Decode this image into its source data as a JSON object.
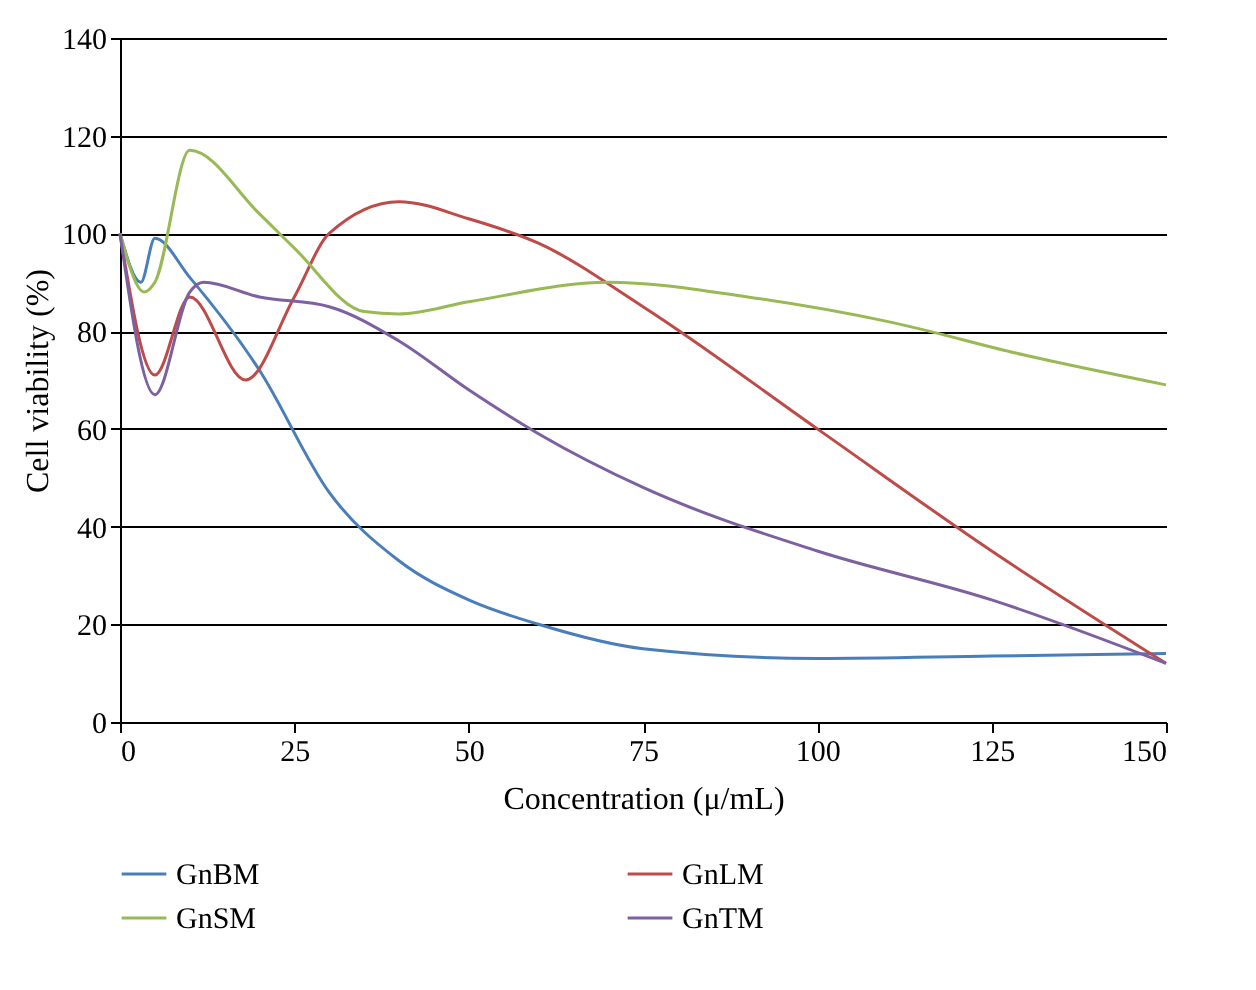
{
  "chart_data": {
    "type": "line",
    "xlabel": "Concentration (μ/mL)",
    "ylabel": "Cell viability (%)",
    "xlim": [
      0,
      150
    ],
    "xticks": [
      0,
      25,
      50,
      75,
      100,
      125,
      150
    ],
    "ylim": [
      0,
      140
    ],
    "yticks": [
      0,
      20,
      40,
      60,
      80,
      100,
      120,
      140
    ],
    "grid": "y",
    "legend": "bottom",
    "marker": "none",
    "line_style": "solid",
    "series": [
      {
        "name": "GnBM",
        "color": "#4a7ebb",
        "x": [
          0,
          3,
          5,
          10,
          20,
          30,
          40,
          50,
          60,
          75,
          100,
          125,
          150
        ],
        "values": [
          100,
          90,
          99,
          91,
          72,
          47,
          33,
          25,
          20,
          15,
          13,
          13.5,
          14
        ]
      },
      {
        "name": "GnLM",
        "color": "#be4b48",
        "x": [
          0,
          5,
          10,
          18,
          25,
          30,
          40,
          50,
          60,
          75,
          100,
          125,
          150
        ],
        "values": [
          100,
          71,
          87,
          70,
          87,
          100,
          106.5,
          103,
          98,
          85,
          60,
          35,
          12
        ]
      },
      {
        "name": "GnSM",
        "color": "#98b954",
        "x": [
          0,
          3.5,
          5,
          10,
          20,
          25,
          35,
          40,
          50,
          70,
          90,
          110,
          130,
          150
        ],
        "values": [
          100,
          88,
          90,
          117,
          104,
          97,
          84,
          83.5,
          86,
          90,
          87,
          82,
          75,
          69
        ]
      },
      {
        "name": "GnTM",
        "color": "#7d60a0",
        "x": [
          0,
          5,
          10,
          12,
          20,
          30,
          40,
          50,
          60,
          75,
          100,
          125,
          150
        ],
        "values": [
          100,
          67,
          88,
          90,
          87,
          85,
          78,
          68,
          59,
          48,
          35,
          25,
          12
        ]
      }
    ]
  }
}
